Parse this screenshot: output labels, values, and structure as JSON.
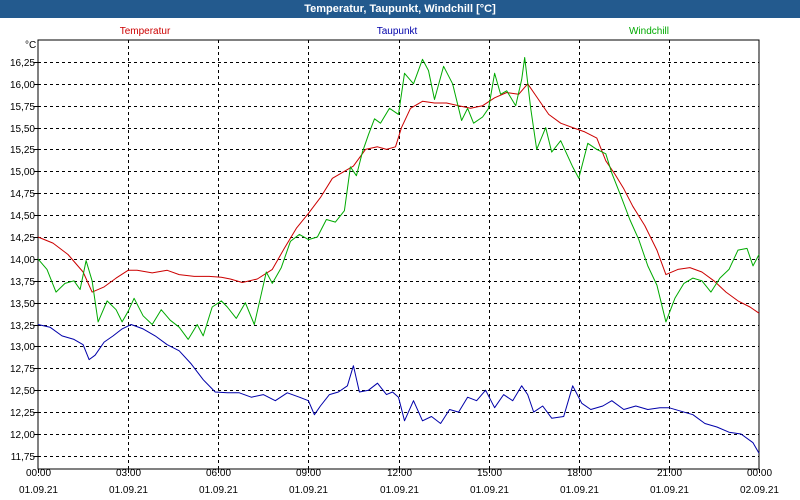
{
  "window": {
    "title": "Temperatur, Taupunkt, Windchill [°C]"
  },
  "chart_data": {
    "type": "line",
    "title": "Temperatur, Taupunkt, Windchill [°C]",
    "ylabel": "°C",
    "xlabel": "",
    "ylim": [
      11.6,
      16.5
    ],
    "xlim": [
      0,
      24
    ],
    "grid": true,
    "legend": "top",
    "yticks": [
      "11,75",
      "12,00",
      "12,25",
      "12,50",
      "12,75",
      "13,00",
      "13,25",
      "13,50",
      "13,75",
      "14,00",
      "14,25",
      "14,50",
      "14,75",
      "15,00",
      "15,25",
      "15,50",
      "15,75",
      "16,00",
      "16,25"
    ],
    "ytick_values": [
      11.75,
      12.0,
      12.25,
      12.5,
      12.75,
      13.0,
      13.25,
      13.5,
      13.75,
      14.0,
      14.25,
      14.5,
      14.75,
      15.0,
      15.25,
      15.5,
      15.75,
      16.0,
      16.25
    ],
    "xticks": [
      {
        "x": 0,
        "time": "00:00",
        "date": "01.09.21"
      },
      {
        "x": 3,
        "time": "03:00",
        "date": "01.09.21"
      },
      {
        "x": 6,
        "time": "06:00",
        "date": "01.09.21"
      },
      {
        "x": 9,
        "time": "09:00",
        "date": "01.09.21"
      },
      {
        "x": 12,
        "time": "12:00",
        "date": "01.09.21"
      },
      {
        "x": 15,
        "time": "15:00",
        "date": "01.09.21"
      },
      {
        "x": 18,
        "time": "18:00",
        "date": "01.09.21"
      },
      {
        "x": 21,
        "time": "21:00",
        "date": "01.09.21"
      },
      {
        "x": 24,
        "time": "00:00",
        "date": "02.09.21"
      }
    ],
    "series": [
      {
        "name": "Temperatur",
        "color": "#cc0000",
        "points": [
          [
            0,
            14.25
          ],
          [
            0.5,
            14.18
          ],
          [
            1.0,
            14.05
          ],
          [
            1.5,
            13.85
          ],
          [
            1.8,
            13.62
          ],
          [
            2.2,
            13.68
          ],
          [
            2.6,
            13.78
          ],
          [
            3.0,
            13.87
          ],
          [
            3.3,
            13.87
          ],
          [
            3.8,
            13.84
          ],
          [
            4.3,
            13.87
          ],
          [
            4.7,
            13.82
          ],
          [
            5.2,
            13.8
          ],
          [
            5.7,
            13.8
          ],
          [
            6.1,
            13.79
          ],
          [
            6.4,
            13.77
          ],
          [
            6.8,
            13.73
          ],
          [
            7.3,
            13.77
          ],
          [
            7.8,
            13.88
          ],
          [
            8.2,
            14.12
          ],
          [
            8.6,
            14.35
          ],
          [
            9.0,
            14.52
          ],
          [
            9.4,
            14.7
          ],
          [
            9.8,
            14.92
          ],
          [
            10.2,
            15.0
          ],
          [
            10.5,
            15.06
          ],
          [
            10.9,
            15.25
          ],
          [
            11.3,
            15.28
          ],
          [
            11.6,
            15.25
          ],
          [
            11.9,
            15.28
          ],
          [
            12.1,
            15.5
          ],
          [
            12.4,
            15.72
          ],
          [
            12.8,
            15.8
          ],
          [
            13.2,
            15.78
          ],
          [
            13.6,
            15.78
          ],
          [
            14.0,
            15.75
          ],
          [
            14.4,
            15.72
          ],
          [
            14.8,
            15.75
          ],
          [
            15.2,
            15.84
          ],
          [
            15.6,
            15.9
          ],
          [
            16.0,
            15.88
          ],
          [
            16.3,
            16.0
          ],
          [
            16.6,
            15.85
          ],
          [
            17.0,
            15.65
          ],
          [
            17.4,
            15.55
          ],
          [
            17.8,
            15.5
          ],
          [
            18.2,
            15.45
          ],
          [
            18.6,
            15.38
          ],
          [
            18.9,
            15.12
          ],
          [
            19.2,
            14.97
          ],
          [
            19.5,
            14.8
          ],
          [
            19.8,
            14.6
          ],
          [
            20.2,
            14.38
          ],
          [
            20.6,
            14.1
          ],
          [
            20.9,
            13.82
          ],
          [
            21.3,
            13.88
          ],
          [
            21.7,
            13.9
          ],
          [
            22.1,
            13.85
          ],
          [
            22.5,
            13.75
          ],
          [
            22.9,
            13.62
          ],
          [
            23.3,
            13.52
          ],
          [
            23.7,
            13.45
          ],
          [
            24.0,
            13.38
          ]
        ]
      },
      {
        "name": "Taupunkt",
        "color": "#0000aa",
        "points": [
          [
            0,
            13.25
          ],
          [
            0.4,
            13.22
          ],
          [
            0.8,
            13.12
          ],
          [
            1.2,
            13.08
          ],
          [
            1.5,
            13.02
          ],
          [
            1.7,
            12.85
          ],
          [
            1.9,
            12.9
          ],
          [
            2.2,
            13.05
          ],
          [
            2.5,
            13.12
          ],
          [
            2.8,
            13.2
          ],
          [
            3.1,
            13.25
          ],
          [
            3.5,
            13.2
          ],
          [
            3.9,
            13.12
          ],
          [
            4.3,
            13.02
          ],
          [
            4.7,
            12.95
          ],
          [
            5.1,
            12.8
          ],
          [
            5.5,
            12.62
          ],
          [
            5.9,
            12.48
          ],
          [
            6.3,
            12.47
          ],
          [
            6.7,
            12.47
          ],
          [
            7.1,
            12.42
          ],
          [
            7.5,
            12.45
          ],
          [
            7.9,
            12.38
          ],
          [
            8.3,
            12.47
          ],
          [
            8.7,
            12.42
          ],
          [
            9.0,
            12.38
          ],
          [
            9.2,
            12.22
          ],
          [
            9.4,
            12.32
          ],
          [
            9.7,
            12.45
          ],
          [
            10.0,
            12.48
          ],
          [
            10.3,
            12.55
          ],
          [
            10.5,
            12.78
          ],
          [
            10.7,
            12.48
          ],
          [
            11.0,
            12.5
          ],
          [
            11.3,
            12.58
          ],
          [
            11.6,
            12.45
          ],
          [
            11.8,
            12.48
          ],
          [
            12.0,
            12.42
          ],
          [
            12.2,
            12.15
          ],
          [
            12.5,
            12.38
          ],
          [
            12.8,
            12.15
          ],
          [
            13.1,
            12.2
          ],
          [
            13.4,
            12.12
          ],
          [
            13.7,
            12.28
          ],
          [
            14.0,
            12.25
          ],
          [
            14.3,
            12.42
          ],
          [
            14.6,
            12.38
          ],
          [
            14.9,
            12.5
          ],
          [
            15.2,
            12.3
          ],
          [
            15.5,
            12.45
          ],
          [
            15.8,
            12.38
          ],
          [
            16.1,
            12.55
          ],
          [
            16.3,
            12.45
          ],
          [
            16.5,
            12.25
          ],
          [
            16.8,
            12.32
          ],
          [
            17.1,
            12.18
          ],
          [
            17.5,
            12.2
          ],
          [
            17.8,
            12.55
          ],
          [
            18.1,
            12.35
          ],
          [
            18.4,
            12.28
          ],
          [
            18.8,
            12.32
          ],
          [
            19.1,
            12.38
          ],
          [
            19.5,
            12.28
          ],
          [
            19.9,
            12.32
          ],
          [
            20.3,
            12.28
          ],
          [
            20.7,
            12.3
          ],
          [
            21.0,
            12.3
          ],
          [
            21.4,
            12.26
          ],
          [
            21.8,
            12.22
          ],
          [
            22.2,
            12.12
          ],
          [
            22.6,
            12.08
          ],
          [
            23.0,
            12.02
          ],
          [
            23.4,
            12.0
          ],
          [
            23.8,
            11.9
          ],
          [
            24.0,
            11.78
          ]
        ]
      },
      {
        "name": "Windchill",
        "color": "#00aa00",
        "points": [
          [
            0,
            14.0
          ],
          [
            0.3,
            13.88
          ],
          [
            0.6,
            13.62
          ],
          [
            0.9,
            13.72
          ],
          [
            1.2,
            13.75
          ],
          [
            1.4,
            13.65
          ],
          [
            1.6,
            13.98
          ],
          [
            1.8,
            13.75
          ],
          [
            2.0,
            13.28
          ],
          [
            2.3,
            13.52
          ],
          [
            2.6,
            13.42
          ],
          [
            2.8,
            13.28
          ],
          [
            3.0,
            13.4
          ],
          [
            3.2,
            13.55
          ],
          [
            3.5,
            13.35
          ],
          [
            3.8,
            13.25
          ],
          [
            4.1,
            13.42
          ],
          [
            4.4,
            13.3
          ],
          [
            4.7,
            13.22
          ],
          [
            5.0,
            13.08
          ],
          [
            5.3,
            13.25
          ],
          [
            5.5,
            13.12
          ],
          [
            5.8,
            13.45
          ],
          [
            6.1,
            13.52
          ],
          [
            6.3,
            13.45
          ],
          [
            6.6,
            13.32
          ],
          [
            6.9,
            13.5
          ],
          [
            7.2,
            13.25
          ],
          [
            7.4,
            13.55
          ],
          [
            7.6,
            13.85
          ],
          [
            7.8,
            13.72
          ],
          [
            8.1,
            13.9
          ],
          [
            8.4,
            14.2
          ],
          [
            8.7,
            14.28
          ],
          [
            9.0,
            14.22
          ],
          [
            9.3,
            14.25
          ],
          [
            9.6,
            14.45
          ],
          [
            9.9,
            14.42
          ],
          [
            10.2,
            14.55
          ],
          [
            10.4,
            15.05
          ],
          [
            10.6,
            14.95
          ],
          [
            10.8,
            15.22
          ],
          [
            11.0,
            15.42
          ],
          [
            11.2,
            15.6
          ],
          [
            11.4,
            15.55
          ],
          [
            11.7,
            15.72
          ],
          [
            12.0,
            15.65
          ],
          [
            12.2,
            16.12
          ],
          [
            12.5,
            16.0
          ],
          [
            12.8,
            16.28
          ],
          [
            13.0,
            16.15
          ],
          [
            13.2,
            15.82
          ],
          [
            13.5,
            16.2
          ],
          [
            13.8,
            16.0
          ],
          [
            14.1,
            15.58
          ],
          [
            14.3,
            15.72
          ],
          [
            14.5,
            15.55
          ],
          [
            14.8,
            15.62
          ],
          [
            15.0,
            15.72
          ],
          [
            15.2,
            16.12
          ],
          [
            15.4,
            15.88
          ],
          [
            15.6,
            15.92
          ],
          [
            15.9,
            15.75
          ],
          [
            16.1,
            16.05
          ],
          [
            16.2,
            16.3
          ],
          [
            16.4,
            15.72
          ],
          [
            16.6,
            15.25
          ],
          [
            16.9,
            15.5
          ],
          [
            17.1,
            15.22
          ],
          [
            17.4,
            15.35
          ],
          [
            17.6,
            15.2
          ],
          [
            17.8,
            15.05
          ],
          [
            18.0,
            14.92
          ],
          [
            18.3,
            15.32
          ],
          [
            18.6,
            15.25
          ],
          [
            18.9,
            15.2
          ],
          [
            19.1,
            14.98
          ],
          [
            19.4,
            14.72
          ],
          [
            19.7,
            14.45
          ],
          [
            20.0,
            14.22
          ],
          [
            20.3,
            13.92
          ],
          [
            20.6,
            13.7
          ],
          [
            20.9,
            13.28
          ],
          [
            21.2,
            13.55
          ],
          [
            21.5,
            13.72
          ],
          [
            21.8,
            13.78
          ],
          [
            22.1,
            13.75
          ],
          [
            22.4,
            13.62
          ],
          [
            22.7,
            13.78
          ],
          [
            23.0,
            13.88
          ],
          [
            23.3,
            14.1
          ],
          [
            23.6,
            14.12
          ],
          [
            23.8,
            13.92
          ],
          [
            24.0,
            14.05
          ]
        ]
      }
    ]
  }
}
